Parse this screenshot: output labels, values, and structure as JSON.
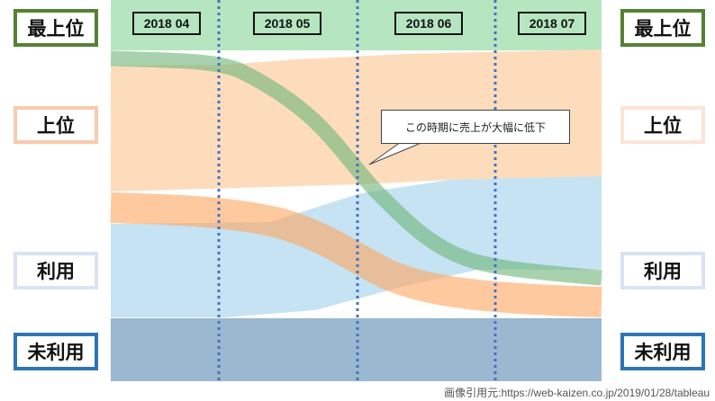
{
  "left_labels": [
    "最上位",
    "上位",
    "利用",
    "未利用"
  ],
  "right_labels": [
    "最上位",
    "上位",
    "利用",
    "未利用"
  ],
  "periods": [
    "2018 04",
    "2018 05",
    "2018 06",
    "2018 07"
  ],
  "callout": "この時期に売上が大幅に低下",
  "source": "画像引用元:https://web-kaizen.co.jp/2019/01/28/tableau",
  "colors": {
    "top": "#b5e6c0",
    "upper": "#fddcbc",
    "use": "#c5e3f3",
    "unused": "#9ab8d0",
    "guide": "#4472c4"
  }
}
